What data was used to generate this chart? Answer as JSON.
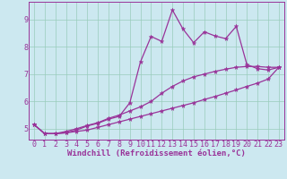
{
  "xlabel": "Windchill (Refroidissement éolien,°C)",
  "background_color": "#cce8f0",
  "line_color": "#993399",
  "grid_color": "#99ccbb",
  "xlim": [
    -0.5,
    23.5
  ],
  "ylim": [
    4.6,
    9.65
  ],
  "xticks": [
    0,
    1,
    2,
    3,
    4,
    5,
    6,
    7,
    8,
    9,
    10,
    11,
    12,
    13,
    14,
    15,
    16,
    17,
    18,
    19,
    20,
    21,
    22,
    23
  ],
  "yticks": [
    5,
    6,
    7,
    8,
    9
  ],
  "line1_x": [
    0,
    1,
    2,
    3,
    4,
    5,
    6,
    7,
    8,
    9,
    10,
    11,
    12,
    13,
    14,
    15,
    16,
    17,
    18,
    19,
    20,
    21,
    22,
    23
  ],
  "line1_y": [
    5.15,
    4.82,
    4.82,
    4.85,
    4.95,
    5.1,
    5.2,
    5.35,
    5.45,
    5.95,
    7.45,
    8.38,
    8.2,
    9.35,
    8.65,
    8.15,
    8.55,
    8.4,
    8.3,
    8.75,
    7.35,
    7.2,
    7.15,
    7.25
  ],
  "line2_x": [
    0,
    1,
    2,
    3,
    4,
    5,
    6,
    7,
    8,
    9,
    10,
    11,
    12,
    13,
    14,
    15,
    16,
    17,
    18,
    19,
    20,
    21,
    22,
    23
  ],
  "line2_y": [
    5.15,
    4.82,
    4.82,
    4.9,
    5.0,
    5.12,
    5.22,
    5.38,
    5.5,
    5.65,
    5.8,
    6.0,
    6.3,
    6.55,
    6.75,
    6.9,
    7.0,
    7.1,
    7.18,
    7.25,
    7.28,
    7.28,
    7.25,
    7.25
  ],
  "line3_x": [
    0,
    1,
    2,
    3,
    4,
    5,
    6,
    7,
    8,
    9,
    10,
    11,
    12,
    13,
    14,
    15,
    16,
    17,
    18,
    19,
    20,
    21,
    22,
    23
  ],
  "line3_y": [
    5.15,
    4.82,
    4.82,
    4.85,
    4.9,
    4.95,
    5.05,
    5.15,
    5.25,
    5.35,
    5.45,
    5.55,
    5.65,
    5.75,
    5.85,
    5.95,
    6.07,
    6.18,
    6.3,
    6.42,
    6.55,
    6.67,
    6.82,
    7.25
  ],
  "xlabel_fontsize": 6.5,
  "tick_fontsize": 6.0,
  "linewidth": 0.9,
  "markersize": 2.2
}
